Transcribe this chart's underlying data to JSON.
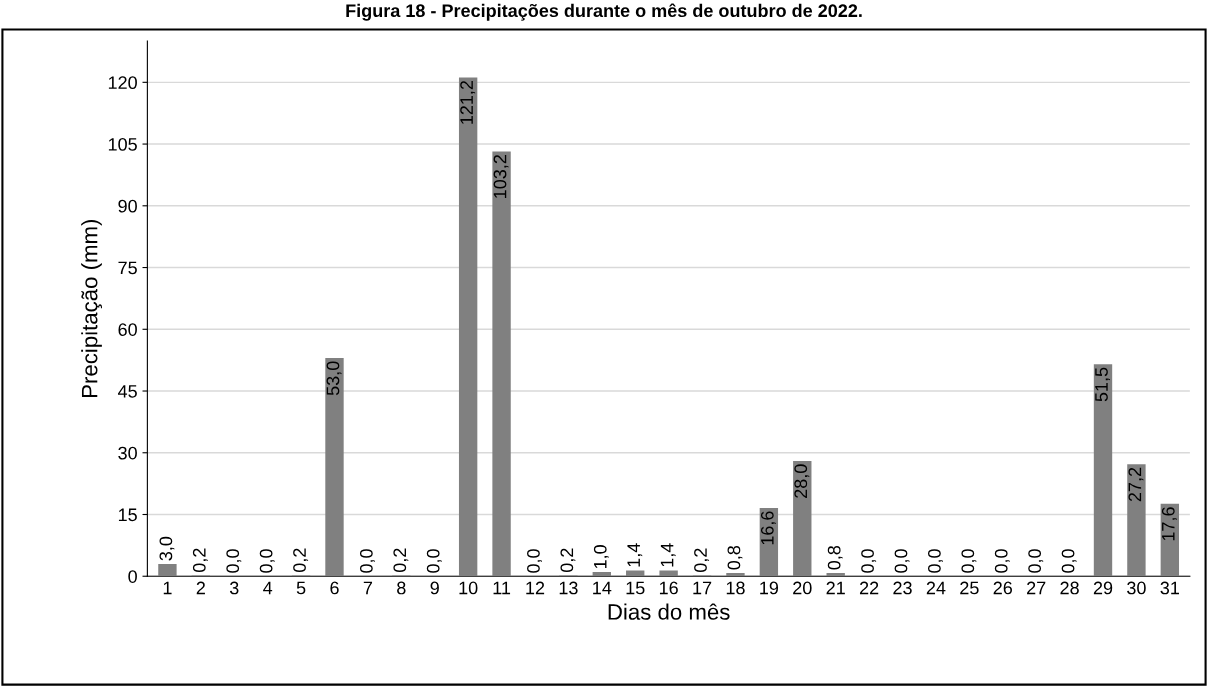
{
  "chart_data": {
    "type": "bar",
    "title": "Figura 18 - Precipitações durante o mês de outubro de 2022.",
    "xlabel": "Dias do mês",
    "ylabel": "Precipitação (mm)",
    "categories": [
      "1",
      "2",
      "3",
      "4",
      "5",
      "6",
      "7",
      "8",
      "9",
      "10",
      "11",
      "12",
      "13",
      "14",
      "15",
      "16",
      "17",
      "18",
      "19",
      "20",
      "21",
      "22",
      "23",
      "24",
      "25",
      "26",
      "27",
      "28",
      "29",
      "30",
      "31"
    ],
    "values": [
      3.0,
      0.2,
      0.0,
      0.0,
      0.2,
      53.0,
      0.0,
      0.2,
      0.0,
      121.2,
      103.2,
      0.0,
      0.2,
      1.0,
      1.4,
      1.4,
      0.2,
      0.8,
      16.6,
      28.0,
      0.8,
      0.0,
      0.0,
      0.0,
      0.0,
      0.0,
      0.0,
      0.0,
      51.5,
      27.2,
      17.6
    ],
    "value_labels": [
      "3,0",
      "0,2",
      "0,0",
      "0,0",
      "0,2",
      "53,0",
      "0,0",
      "0,2",
      "0,0",
      "121,2",
      "103,2",
      "0,0",
      "0,2",
      "1,0",
      "1,4",
      "1,4",
      "0,2",
      "0,8",
      "16,6",
      "28,0",
      "0,8",
      "0,0",
      "0,0",
      "0,0",
      "0,0",
      "0,0",
      "0,0",
      "0,0",
      "51,5",
      "27,2",
      "17,6"
    ],
    "color": "#808080",
    "ylim": [
      0,
      130
    ],
    "yticks": [
      0,
      15,
      30,
      45,
      60,
      75,
      90,
      105,
      120
    ],
    "grid": "y",
    "legend": false
  }
}
